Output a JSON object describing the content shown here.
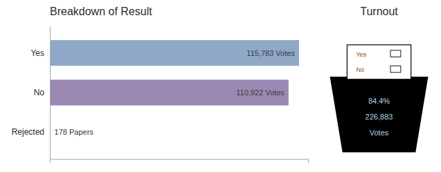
{
  "chart_data": {
    "type": "bar",
    "orientation": "horizontal",
    "title": "Breakdown of Result",
    "categories": [
      "Yes",
      "No",
      "Rejected"
    ],
    "values": [
      115783,
      110922,
      178
    ],
    "value_labels": [
      "115,783 Votes",
      "110,922 Votes",
      "178 Papers"
    ],
    "colors": [
      "#8fa8c8",
      "#9b89b4",
      "#c0392b"
    ],
    "data_labels": true,
    "tick_labels": "y",
    "xlim": [
      0,
      120000
    ],
    "grid": false,
    "annotations": [
      "Turnout",
      "84.4%",
      "226,883",
      "Votes",
      "Yes",
      "No"
    ]
  }
}
